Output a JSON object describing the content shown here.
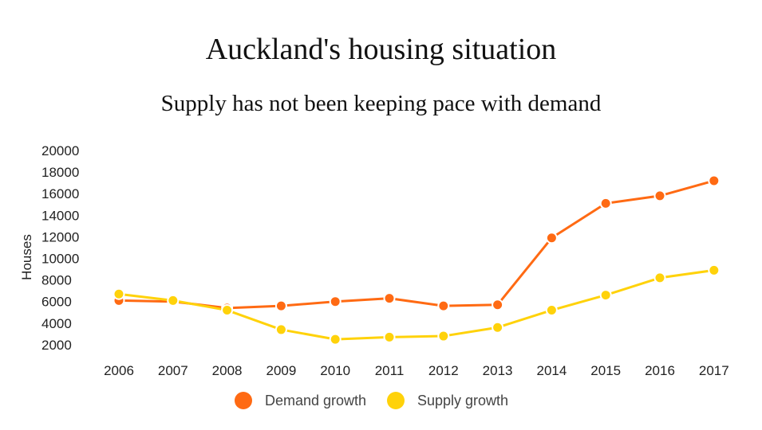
{
  "chart_data": {
    "type": "line",
    "title": "Auckland's housing situation",
    "subtitle": "Supply has not been keeping pace with demand",
    "xlabel": "",
    "ylabel": "Houses",
    "x": [
      "2006",
      "2007",
      "2008",
      "2009",
      "2010",
      "2011",
      "2012",
      "2013",
      "2014",
      "2015",
      "2016",
      "2017"
    ],
    "yticks": [
      2000,
      4000,
      6000,
      8000,
      10000,
      12000,
      14000,
      16000,
      18000,
      20000
    ],
    "ylim": [
      0,
      20000
    ],
    "grid": false,
    "legend_position": "bottom",
    "series": [
      {
        "name": "Demand growth",
        "color": "#ff6a13",
        "values": [
          6100,
          6000,
          5400,
          5600,
          6000,
          6300,
          5600,
          5700,
          11900,
          15100,
          15800,
          17200
        ]
      },
      {
        "name": "Supply growth",
        "color": "#ffd20a",
        "values": [
          6700,
          6100,
          5200,
          3400,
          2500,
          2700,
          2800,
          3600,
          5200,
          6600,
          8200,
          8900
        ]
      }
    ]
  }
}
